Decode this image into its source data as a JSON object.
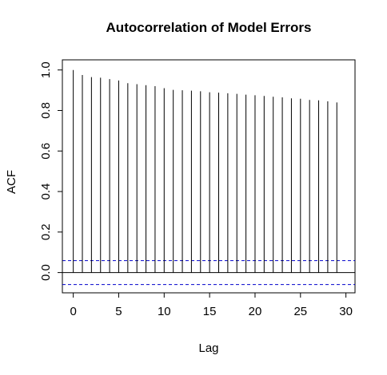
{
  "chart_data": {
    "type": "bar",
    "title": "Autocorrelation of Model Errors",
    "xlabel": "Lag",
    "ylabel": "ACF",
    "xlim": [
      -1.2,
      31
    ],
    "ylim": [
      -0.1,
      1.05
    ],
    "x_ticks": [
      0,
      5,
      10,
      15,
      20,
      25,
      30
    ],
    "y_ticks": [
      0.0,
      0.2,
      0.4,
      0.6,
      0.8,
      1.0
    ],
    "y_tick_labels": [
      "0.0",
      "0.2",
      "0.4",
      "0.6",
      "0.8",
      "1.0"
    ],
    "x_tick_labels": [
      "0",
      "5",
      "10",
      "15",
      "20",
      "25",
      "30"
    ],
    "lags": [
      0,
      1,
      2,
      3,
      4,
      5,
      6,
      7,
      8,
      9,
      10,
      11,
      12,
      13,
      14,
      15,
      16,
      17,
      18,
      19,
      20,
      21,
      22,
      23,
      24,
      25,
      26,
      27,
      28,
      29
    ],
    "acf": [
      1.0,
      0.975,
      0.965,
      0.962,
      0.955,
      0.948,
      0.935,
      0.93,
      0.925,
      0.92,
      0.91,
      0.902,
      0.9,
      0.898,
      0.895,
      0.89,
      0.888,
      0.885,
      0.882,
      0.878,
      0.875,
      0.872,
      0.868,
      0.865,
      0.86,
      0.858,
      0.852,
      0.85,
      0.845,
      0.84
    ],
    "confidence_bounds": [
      0.059,
      -0.059
    ],
    "confidence_color": "#0000cc",
    "zero_line": true,
    "grid": false,
    "legend": "none"
  }
}
